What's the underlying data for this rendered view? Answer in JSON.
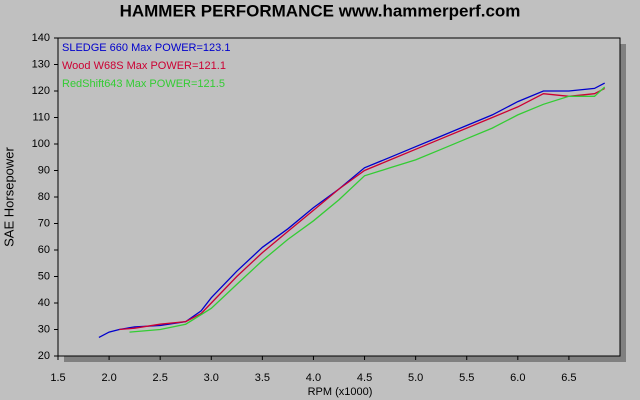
{
  "chart_data": {
    "type": "line",
    "title": "HAMMER PERFORMANCE www.hammerperf.com",
    "xlabel": "RPM (x1000)",
    "ylabel": "SAE Horsepower",
    "xlim": [
      1.5,
      7.0
    ],
    "ylim": [
      20,
      140
    ],
    "xticks": [
      1.5,
      {
        "value": 2,
        "label": "2.0"
      },
      2.5,
      {
        "value": 3,
        "label": "3.0"
      },
      3.5,
      {
        "value": 4,
        "label": "4.0"
      },
      4.5,
      {
        "value": 5,
        "label": "5.0"
      },
      5.5,
      {
        "value": 6,
        "label": "6.0"
      },
      6.5
    ],
    "yticks": [
      20,
      30,
      40,
      50,
      60,
      70,
      80,
      90,
      100,
      110,
      120,
      130,
      140
    ],
    "series": [
      {
        "name": "SLEDGE 660  Max POWER=123.1",
        "color": "#0000cc",
        "x": [
          1.9,
          2.0,
          2.1,
          2.25,
          2.5,
          2.75,
          2.9,
          3.0,
          3.25,
          3.5,
          3.75,
          4.0,
          4.25,
          4.5,
          4.75,
          5.0,
          5.25,
          5.5,
          5.75,
          6.0,
          6.25,
          6.5,
          6.75,
          6.85
        ],
        "values": [
          27,
          29,
          30,
          31,
          31.5,
          33,
          37,
          42,
          52,
          61,
          68,
          76,
          83,
          91,
          95,
          99,
          103,
          107,
          111,
          116,
          120,
          120,
          121,
          123
        ]
      },
      {
        "name": "Wood W68S  Max POWER=121.1",
        "color": "#cc0033",
        "x": [
          2.1,
          2.25,
          2.5,
          2.75,
          2.9,
          3.0,
          3.25,
          3.5,
          3.75,
          4.0,
          4.25,
          4.5,
          4.75,
          5.0,
          5.25,
          5.5,
          5.75,
          6.0,
          6.25,
          6.5,
          6.75,
          6.85
        ],
        "values": [
          30,
          30.5,
          32,
          33,
          36,
          40,
          50,
          59,
          67,
          75,
          83,
          90,
          94,
          98,
          102,
          106,
          110,
          114,
          119,
          118,
          119,
          121
        ]
      },
      {
        "name": "RedShift643  Max POWER=121.5",
        "color": "#33cc33",
        "x": [
          2.2,
          2.5,
          2.75,
          3.0,
          3.25,
          3.5,
          3.75,
          4.0,
          4.25,
          4.5,
          4.75,
          5.0,
          5.25,
          5.5,
          5.75,
          6.0,
          6.25,
          6.5,
          6.75,
          6.85
        ],
        "values": [
          29,
          30,
          32,
          38,
          47,
          56,
          64,
          71,
          79,
          88,
          91,
          94,
          98,
          102,
          106,
          111,
          115,
          118,
          118,
          121.5
        ]
      }
    ]
  }
}
